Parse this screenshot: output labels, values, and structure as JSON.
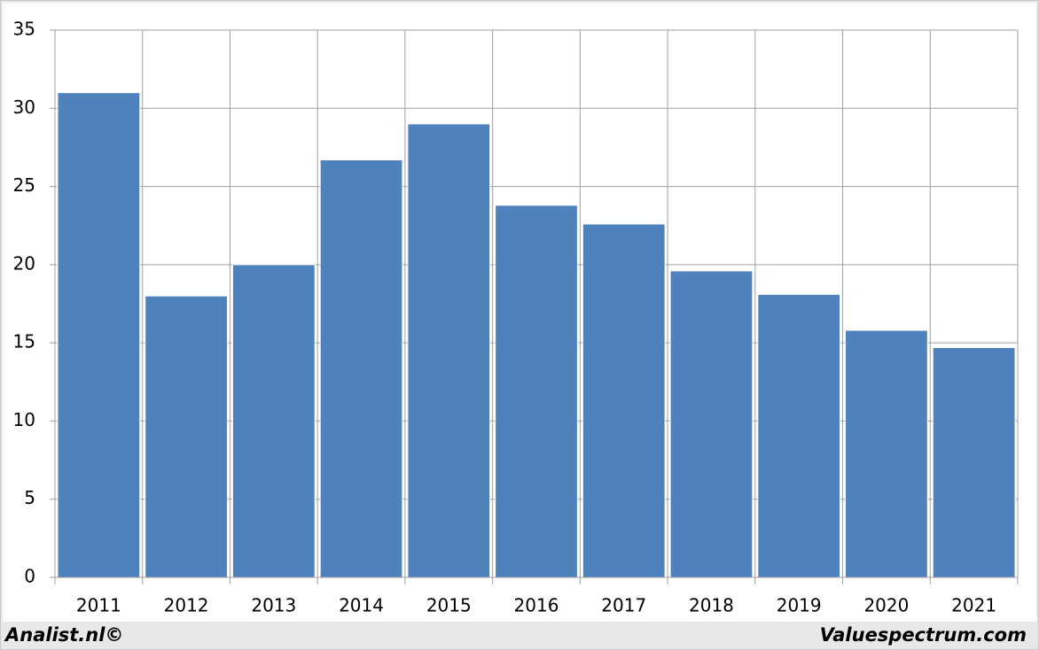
{
  "chart_data": {
    "type": "bar",
    "categories": [
      "2011",
      "2012",
      "2013",
      "2014",
      "2015",
      "2016",
      "2017",
      "2018",
      "2019",
      "2020",
      "2021"
    ],
    "values": [
      31,
      18,
      20,
      26.7,
      29,
      23.8,
      22.6,
      19.6,
      18.1,
      15.8,
      14.7
    ],
    "color": "#4f81bd",
    "ylim": [
      0,
      35
    ],
    "yticks": [
      0,
      5,
      10,
      15,
      20,
      25,
      30,
      35
    ],
    "grid": true,
    "annotations": [
      "Analist.nl©",
      "Valuespectrum.com"
    ]
  }
}
